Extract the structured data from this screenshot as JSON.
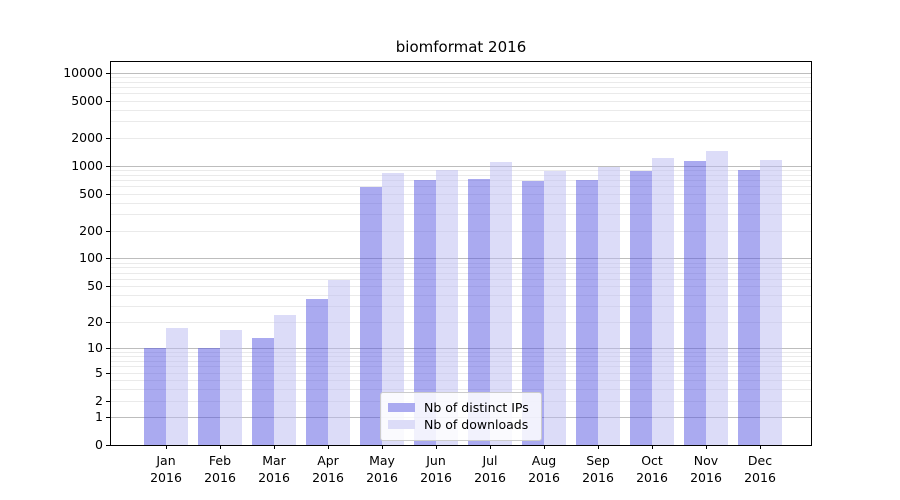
{
  "title": "biomformat 2016",
  "chart_data": {
    "type": "bar",
    "title": "biomformat 2016",
    "categories": [
      "Jan 2016",
      "Feb 2016",
      "Mar 2016",
      "Apr 2016",
      "May 2016",
      "Jun 2016",
      "Jul 2016",
      "Aug 2016",
      "Sep 2016",
      "Oct 2016",
      "Nov 2016",
      "Dec 2016"
    ],
    "series": [
      {
        "name": "Nb of distinct IPs",
        "fill": "rgba(85,85,225,0.5)",
        "swatch": "#aaaaf0",
        "values": [
          10,
          10,
          13,
          36,
          590,
          705,
          725,
          690,
          700,
          870,
          1110,
          895
        ]
      },
      {
        "name": "Nb of downloads",
        "fill": "rgba(185,185,241,0.5)",
        "swatch": "#dcdcf8",
        "values": [
          17,
          16,
          24,
          58,
          835,
          905,
          1085,
          885,
          975,
          1200,
          1425,
          1160
        ]
      }
    ],
    "yscale": "log1p",
    "ylim": [
      0,
      13000
    ],
    "yticks": [
      {
        "v": 0,
        "label": "0"
      },
      {
        "v": 1,
        "label": "1"
      },
      {
        "v": 2,
        "label": "2"
      },
      {
        "v": 5,
        "label": "5"
      },
      {
        "v": 10,
        "label": "10"
      },
      {
        "v": 20,
        "label": "20"
      },
      {
        "v": 50,
        "label": "50"
      },
      {
        "v": 100,
        "label": "100"
      },
      {
        "v": 200,
        "label": "200"
      },
      {
        "v": 500,
        "label": "500"
      },
      {
        "v": 1000,
        "label": "1000"
      },
      {
        "v": 2000,
        "label": "2000"
      },
      {
        "v": 5000,
        "label": "5000"
      },
      {
        "v": 10000,
        "label": "10000"
      }
    ],
    "grid": {
      "major_values": [
        1,
        10,
        100,
        1000,
        10000
      ],
      "minor_values": [
        2,
        3,
        4,
        5,
        6,
        7,
        8,
        9,
        20,
        30,
        40,
        50,
        60,
        70,
        80,
        90,
        200,
        300,
        400,
        500,
        600,
        700,
        800,
        900,
        2000,
        3000,
        4000,
        5000,
        6000,
        7000,
        8000,
        9000
      ]
    },
    "legend": {
      "position": "lower-center"
    },
    "colors": {
      "grid_major": "#bdbdbd",
      "grid_minor": "#eaeaea",
      "spine": "#000000",
      "text": "#000000",
      "legend_border": "#cccccc"
    }
  }
}
